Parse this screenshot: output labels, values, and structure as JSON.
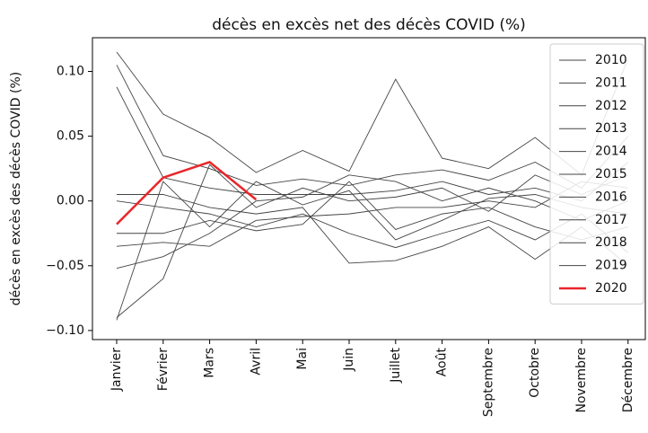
{
  "chart_data": {
    "type": "line",
    "title": "décès en excès net des décès COVID (%)",
    "y_label": "décès en excès des décès COVID (%)",
    "categories": [
      "Janvier",
      "Février",
      "Mars",
      "Avril",
      "Mai",
      "Juin",
      "Juillet",
      "Août",
      "Septembre",
      "Octobre",
      "Novembre",
      "Décembre"
    ],
    "ylim": [
      -0.107,
      0.126
    ],
    "yticks": [
      {
        "value": -0.1,
        "label": "−0.10"
      },
      {
        "value": -0.05,
        "label": "−0.05"
      },
      {
        "value": 0,
        "label": "0.00"
      },
      {
        "value": 0.05,
        "label": "0.05"
      },
      {
        "value": 0.1,
        "label": "0.10"
      }
    ],
    "legend": "upper right",
    "series": [
      {
        "name": "2010",
        "color": "#444444",
        "values": [
          0.115,
          0.067,
          0.049,
          0.022,
          0.039,
          0.023,
          0.094,
          0.033,
          0.025,
          0.049,
          0.02,
          0.11
        ]
      },
      {
        "name": "2011",
        "color": "#444444",
        "values": [
          0.105,
          0.035,
          0.025,
          0.012,
          0.017,
          0.012,
          0.02,
          0.024,
          0.016,
          0.03,
          0.01,
          0.05
        ]
      },
      {
        "name": "2012",
        "color": "#444444",
        "values": [
          0.088,
          0.018,
          0.01,
          0.005,
          0.005,
          0.005,
          0.008,
          0.015,
          0.005,
          0.01,
          0.0,
          0.03
        ]
      },
      {
        "name": "2013",
        "color": "#444444",
        "values": [
          0.005,
          0.005,
          -0.005,
          -0.01,
          -0.005,
          -0.048,
          -0.046,
          -0.035,
          -0.02,
          -0.045,
          -0.02,
          -0.05
        ]
      },
      {
        "name": "2014",
        "color": "#444444",
        "values": [
          0.0,
          -0.005,
          -0.01,
          -0.02,
          -0.01,
          -0.025,
          -0.036,
          -0.025,
          -0.015,
          -0.03,
          -0.01,
          -0.04
        ]
      },
      {
        "name": "2015",
        "color": "#444444",
        "values": [
          -0.025,
          -0.025,
          -0.015,
          -0.023,
          -0.018,
          0.015,
          -0.022,
          -0.01,
          -0.005,
          -0.02,
          -0.03,
          -0.02
        ]
      },
      {
        "name": "2016",
        "color": "#444444",
        "values": [
          -0.035,
          -0.032,
          -0.035,
          -0.015,
          -0.012,
          -0.01,
          -0.005,
          -0.005,
          0.0,
          -0.005,
          0.015,
          0.01
        ]
      },
      {
        "name": "2017",
        "color": "#444444",
        "values": [
          -0.052,
          -0.043,
          -0.025,
          0.0,
          0.003,
          0.02,
          0.015,
          0.0,
          0.01,
          0.0,
          -0.015,
          0.0
        ]
      },
      {
        "name": "2018",
        "color": "#444444",
        "values": [
          -0.09,
          -0.06,
          0.028,
          -0.005,
          0.01,
          0.0,
          0.003,
          0.01,
          -0.008,
          0.02,
          0.005,
          0.02
        ]
      },
      {
        "name": "2019",
        "color": "#444444",
        "values": [
          -0.092,
          0.015,
          -0.02,
          0.015,
          -0.003,
          0.008,
          -0.03,
          -0.015,
          0.002,
          0.005,
          -0.005,
          -0.01
        ]
      },
      {
        "name": "2020",
        "color": "#e8262a",
        "values": [
          -0.018,
          0.018,
          0.03,
          0.001,
          null,
          null,
          null,
          null,
          null,
          null,
          null,
          null
        ]
      }
    ]
  }
}
